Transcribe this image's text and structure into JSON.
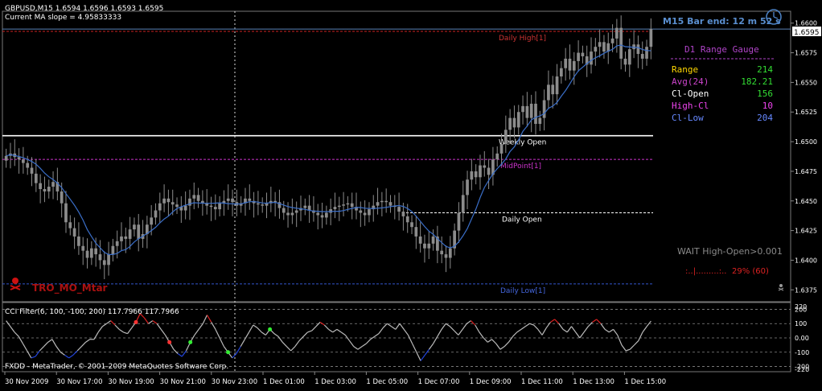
{
  "header": {
    "symbol_line": "GBPUSD,M15  1.6594 1.6596 1.6593 1.6595",
    "ma_line": "Current MA slope = 4.95833333"
  },
  "price_tag": "1.6595",
  "bar_end": "M15 Bar end: 12 m 52 s",
  "range_gauge": {
    "title": "D1 Range Gauge",
    "rows": [
      {
        "label": "Range",
        "value": "214",
        "label_color": "#ffd700",
        "value_color": "#33dd33"
      },
      {
        "label": "Avg(24)",
        "value": "182.21",
        "label_color": "#cc44cc",
        "value_color": "#33dd33"
      },
      {
        "label": "Cl-Open",
        "value": "156",
        "label_color": "#ffffff",
        "value_color": "#33dd33"
      },
      {
        "label": "High-Cl",
        "value": "10",
        "label_color": "#ee44ee",
        "value_color": "#ee44ee"
      },
      {
        "label": "Cl-Low",
        "value": "204",
        "label_color": "#6688ff",
        "value_color": "#6688ff"
      }
    ]
  },
  "wait_text": "WAIT High-Open>0.001",
  "progress_text": "29% (60)",
  "progress_fraction": 0.29,
  "progress_dots": ":..|.........:..",
  "watermark": "TRO_MO_Mtar",
  "levels": [
    {
      "label": "Daily High[1]",
      "price": 1.6593,
      "color": "#cc2222",
      "style": "dashed"
    },
    {
      "label": "Weekly Open",
      "price": 1.6505,
      "color": "#ffffff",
      "style": "solid"
    },
    {
      "label": "MidPoint[1]",
      "price": 1.6485,
      "color": "#cc33cc",
      "style": "dashed"
    },
    {
      "label": "Daily Open",
      "price": 1.644,
      "color": "#ffffff",
      "style": "dashed"
    },
    {
      "label": "Daily Low[1]",
      "price": 1.638,
      "color": "#3355cc",
      "style": "dashed"
    }
  ],
  "cci_label": "CCI Filter(6, 100, -100, 200) 117.7966 117.7966",
  "copyright": "FXDD - MetaTrader, © 2001-2009 MetaQuotes Software Corp.",
  "chart_data": {
    "type": "candlestick",
    "symbol": "GBPUSD",
    "timeframe": "M15",
    "ylim": [
      1.6365,
      1.661
    ],
    "y_ticks": [
      "1.6600",
      "1.6575",
      "1.6550",
      "1.6525",
      "1.6500",
      "1.6475",
      "1.6450",
      "1.6425",
      "1.6400",
      "1.6375"
    ],
    "x_ticks": [
      "30 Nov 2009",
      "30 Nov 17:00",
      "30 Nov 19:00",
      "30 Nov 21:00",
      "30 Nov 23:00",
      "1 Dec 01:00",
      "1 Dec 03:00",
      "1 Dec 05:00",
      "1 Dec 07:00",
      "1 Dec 09:00",
      "1 Dec 11:00",
      "1 Dec 13:00",
      "1 Dec 15:00"
    ],
    "closes": [
      1.6488,
      1.649,
      1.6487,
      1.6485,
      1.6482,
      1.6478,
      1.6473,
      1.6465,
      1.646,
      1.6458,
      1.6462,
      1.6466,
      1.6458,
      1.6448,
      1.6432,
      1.6427,
      1.642,
      1.6412,
      1.6408,
      1.6402,
      1.641,
      1.6405,
      1.64,
      1.6396,
      1.6405,
      1.6412,
      1.6416,
      1.642,
      1.6418,
      1.6426,
      1.643,
      1.6418,
      1.6422,
      1.643,
      1.6436,
      1.6442,
      1.6448,
      1.6452,
      1.6449,
      1.6447,
      1.6445,
      1.6442,
      1.6446,
      1.6452,
      1.6455,
      1.645,
      1.6448,
      1.6446,
      1.6445,
      1.6443,
      1.6448,
      1.645,
      1.6452,
      1.6449,
      1.6446,
      1.6448,
      1.6452,
      1.645,
      1.6448,
      1.6447,
      1.6446,
      1.6448,
      1.645,
      1.6449,
      1.6444,
      1.644,
      1.6438,
      1.644,
      1.6442,
      1.6444,
      1.6446,
      1.6442,
      1.644,
      1.6438,
      1.6436,
      1.644,
      1.6443,
      1.6445,
      1.6446,
      1.6447,
      1.6448,
      1.6445,
      1.6442,
      1.644,
      1.6438,
      1.6443,
      1.6446,
      1.6449,
      1.645,
      1.6449,
      1.6446,
      1.6445,
      1.6441,
      1.6437,
      1.6432,
      1.6428,
      1.642,
      1.6414,
      1.641,
      1.6414,
      1.642,
      1.6408,
      1.6405,
      1.6402,
      1.641,
      1.6425,
      1.644,
      1.6455,
      1.6468,
      1.6475,
      1.647,
      1.648,
      1.6478,
      1.6472,
      1.6485,
      1.649,
      1.6498,
      1.651,
      1.652,
      1.6512,
      1.6525,
      1.653,
      1.652,
      1.6532,
      1.6515,
      1.652,
      1.6535,
      1.6548,
      1.654,
      1.6555,
      1.6562,
      1.657,
      1.656,
      1.6568,
      1.6575,
      1.6572,
      1.6565,
      1.6576,
      1.658,
      1.6584,
      1.6576,
      1.6583,
      1.6587,
      1.6596,
      1.657,
      1.6565,
      1.6578,
      1.6582,
      1.6574,
      1.657,
      1.658,
      1.6595
    ]
  },
  "cci_chart": {
    "ylim": [
      -225,
      225
    ],
    "y_ticks": [
      "220",
      "200",
      "100",
      "0.00",
      "-100",
      "-200",
      "-220"
    ],
    "values": [
      120,
      80,
      40,
      10,
      -40,
      -90,
      -140,
      -130,
      -90,
      -60,
      -30,
      -10,
      -60,
      -100,
      -120,
      -140,
      -120,
      -90,
      -60,
      -30,
      -10,
      -10,
      40,
      80,
      100,
      120,
      90,
      60,
      40,
      30,
      70,
      110,
      170,
      140,
      100,
      120,
      100,
      60,
      20,
      -30,
      -80,
      -110,
      -130,
      -90,
      -30,
      20,
      60,
      100,
      160,
      110,
      60,
      0,
      -60,
      -100,
      -140,
      -110,
      -60,
      -10,
      40,
      90,
      70,
      40,
      20,
      60,
      30,
      10,
      -30,
      -60,
      -90,
      -60,
      -20,
      10,
      40,
      50,
      80,
      110,
      90,
      60,
      40,
      60,
      40,
      20,
      -20,
      -60,
      -80,
      -60,
      -40,
      -10,
      10,
      30,
      70,
      100,
      80,
      60,
      100,
      60,
      20,
      -40,
      -100,
      -160,
      -120,
      -80,
      -40,
      10,
      60,
      100,
      80,
      50,
      20,
      60,
      100,
      120,
      90,
      40,
      0,
      -30,
      -10,
      -40,
      -80,
      -60,
      -30,
      10,
      40,
      60,
      80,
      100,
      90,
      60,
      20,
      70,
      110,
      130,
      100,
      60,
      40,
      80,
      40,
      0,
      40,
      80,
      110,
      130,
      100,
      60,
      40,
      60,
      20,
      -50,
      -90,
      -80,
      -50,
      -20,
      40,
      80,
      117.8
    ],
    "signal_dots": [
      {
        "index": 31,
        "color": "#ff3333"
      },
      {
        "index": 39,
        "color": "#ff3333"
      },
      {
        "index": 44,
        "color": "#33ee33"
      },
      {
        "index": 53,
        "color": "#33ee33"
      },
      {
        "index": 63,
        "color": "#33ee33"
      }
    ]
  },
  "colors": {
    "background": "#000000",
    "candle": "#8c8c8c",
    "ma_line": "#3a6ec8",
    "price_line": "#5a7fb4",
    "axis_text": "#ffffff",
    "cci_up": "#dd2222",
    "cci_down": "#2244dd",
    "cci_neutral": "#bbbbbb"
  }
}
